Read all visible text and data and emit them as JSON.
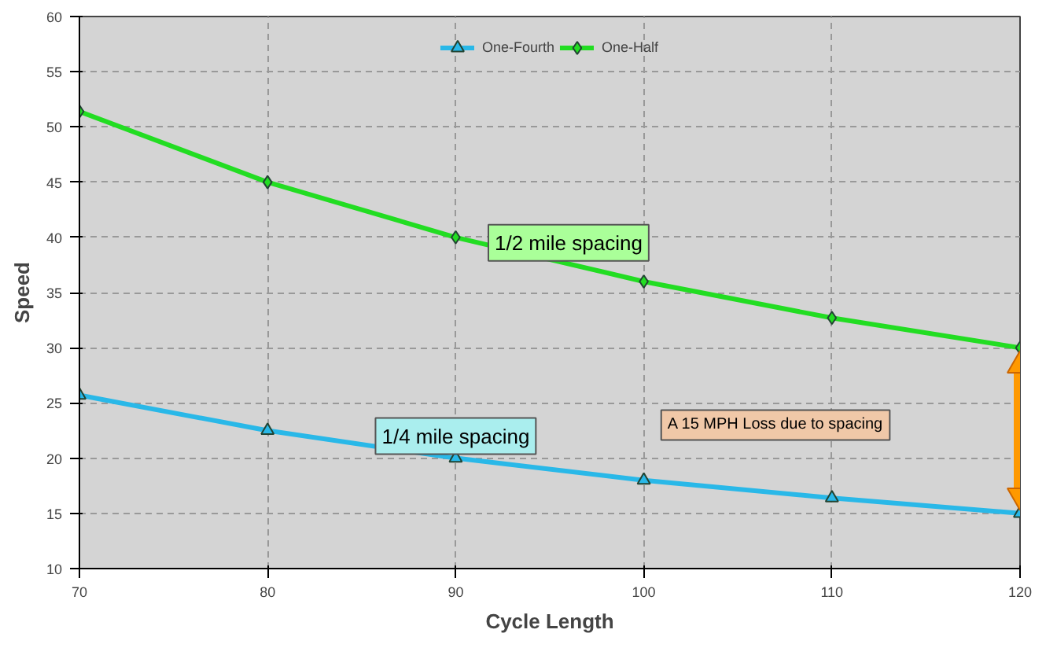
{
  "chart_data": {
    "type": "line",
    "xlabel": "Cycle Length",
    "ylabel": "Speed",
    "x": [
      70,
      80,
      90,
      100,
      110,
      120
    ],
    "series": [
      {
        "name": "One-Fourth",
        "color": "#29b8e8",
        "marker": "triangle",
        "values": [
          25.7,
          22.5,
          20,
          18,
          16.4,
          15
        ]
      },
      {
        "name": "One-Half",
        "color": "#22dd22",
        "marker": "diamond",
        "values": [
          51.4,
          45,
          40,
          36,
          32.7,
          30
        ]
      }
    ],
    "xlim": [
      70,
      120
    ],
    "xticks": [
      70,
      80,
      90,
      100,
      110,
      120
    ],
    "ylim": [
      10,
      60
    ],
    "yticks": [
      10,
      15,
      20,
      25,
      30,
      35,
      40,
      45,
      50,
      55,
      60
    ],
    "grid": true,
    "legend": "top",
    "line_style": "solid",
    "annotations": [
      "1/2 mile spacing",
      "1/4 mile spacing",
      "A 15 MPH Loss due to spacing"
    ]
  }
}
